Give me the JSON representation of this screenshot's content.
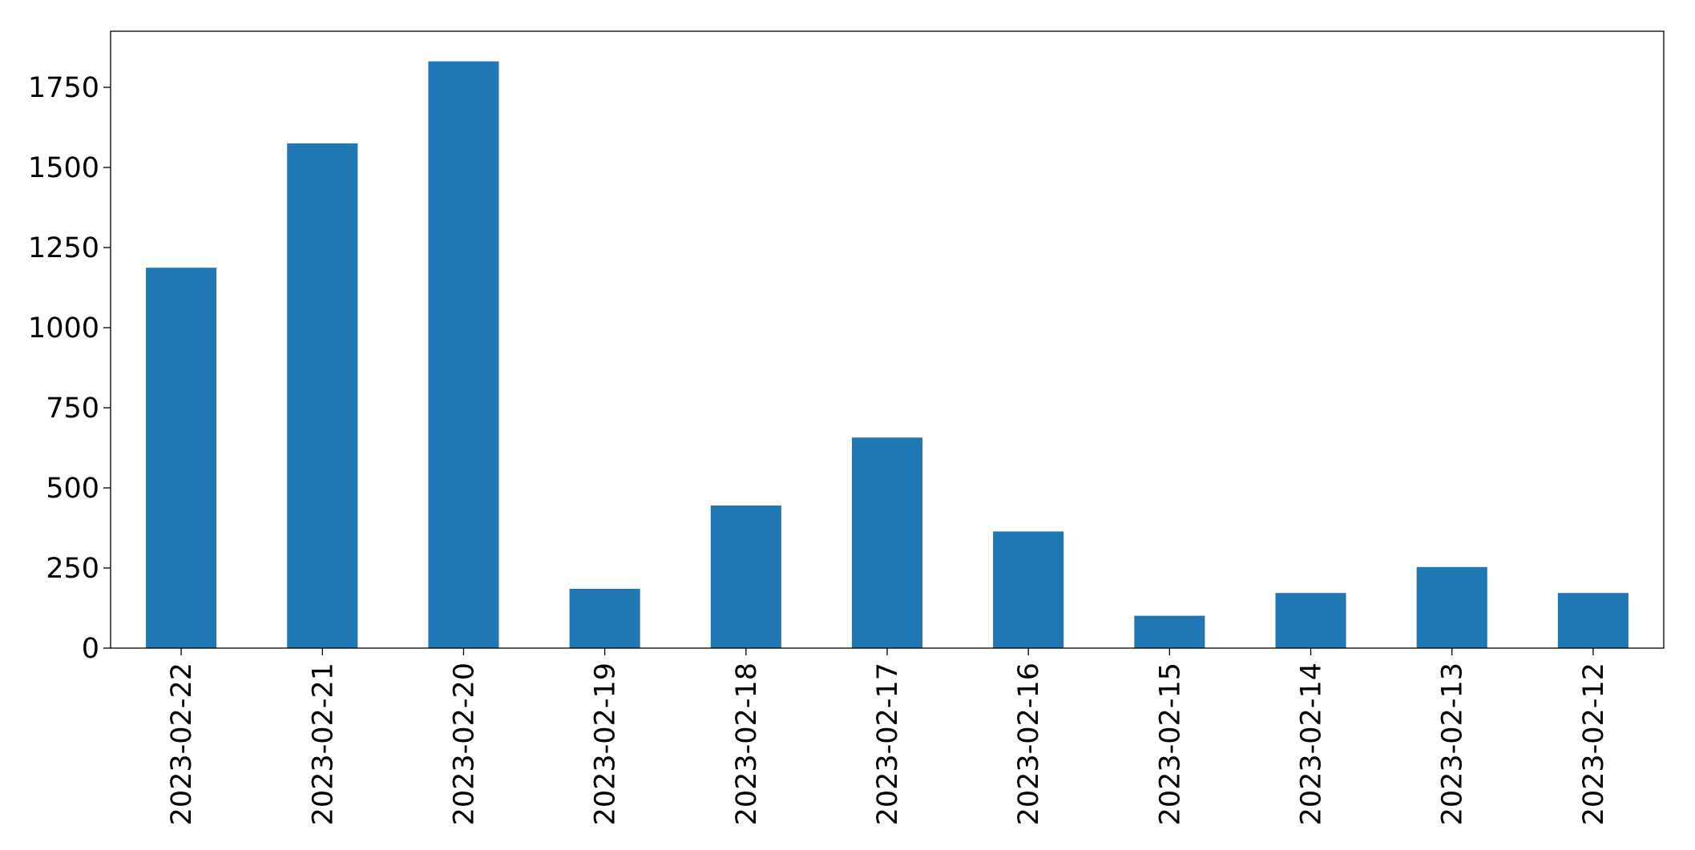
{
  "chart_data": {
    "type": "bar",
    "categories": [
      "2023-02-22",
      "2023-02-21",
      "2023-02-20",
      "2023-02-19",
      "2023-02-18",
      "2023-02-17",
      "2023-02-16",
      "2023-02-15",
      "2023-02-14",
      "2023-02-13",
      "2023-02-12"
    ],
    "values": [
      1187,
      1575,
      1831,
      185,
      445,
      657,
      364,
      101,
      172,
      253,
      172
    ],
    "color": "#1f77b4",
    "ylim": [
      0,
      1925
    ],
    "yticks": [
      0,
      250,
      500,
      750,
      1000,
      1250,
      1500,
      1750
    ],
    "grid": false
  }
}
